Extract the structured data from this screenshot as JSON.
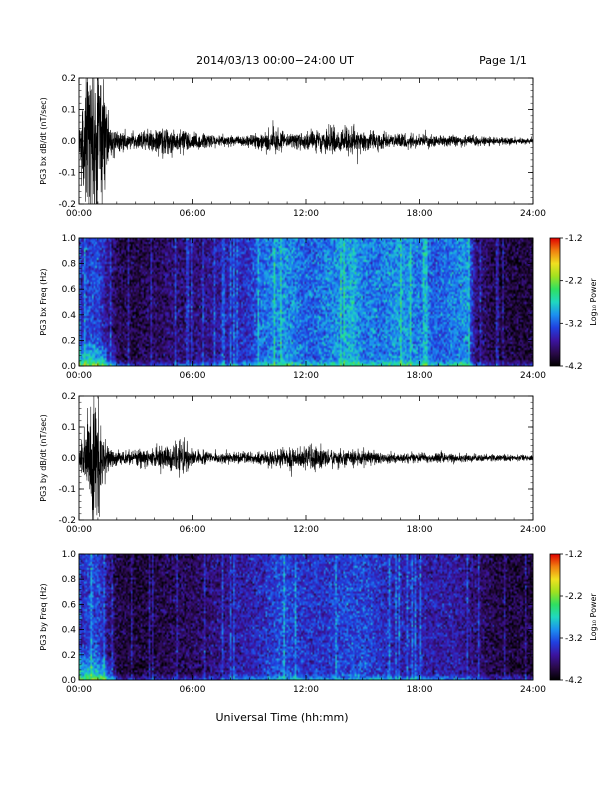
{
  "header": {
    "title": "2014/03/13  00:00−24:00 UT",
    "page": "Page 1/1"
  },
  "footer": {
    "xlabel": "Universal Time (hh:mm)"
  },
  "colorbar_label": "Log₁₀ Power",
  "colormap": [
    "#000000",
    "#2a0a4a",
    "#3c14a0",
    "#2040e0",
    "#1c90f0",
    "#20d8c0",
    "#30e060",
    "#a0e020",
    "#f0e020",
    "#f08010",
    "#e00000"
  ],
  "chart_data": [
    {
      "type": "line",
      "ylabel": "PG3 bx dB/dt (nT/sec)",
      "xlim": [
        0,
        24
      ],
      "ylim": [
        -0.2,
        0.2
      ],
      "xticks": [
        "00:00",
        "06:00",
        "12:00",
        "18:00",
        "24:00"
      ],
      "yticks": [
        "-0.2",
        "-0.1",
        "0.0",
        "0.1",
        "0.2"
      ],
      "ytick_values": [
        -0.2,
        -0.1,
        0.0,
        0.1,
        0.2
      ],
      "envelope": {
        "x": [
          0,
          0.3,
          0.5,
          0.7,
          0.9,
          1.1,
          1.3,
          1.6,
          2,
          3,
          4,
          4.5,
          5,
          5.3,
          6,
          7,
          8,
          9,
          10,
          10.5,
          11,
          12,
          12.5,
          13,
          13.5,
          14,
          14.5,
          15,
          16,
          17,
          18,
          19,
          20,
          21,
          22,
          23,
          24
        ],
        "amplitude": [
          0.02,
          0.15,
          0.2,
          0.2,
          0.2,
          0.2,
          0.15,
          0.05,
          0.025,
          0.02,
          0.03,
          0.035,
          0.03,
          0.03,
          0.02,
          0.015,
          0.013,
          0.015,
          0.025,
          0.035,
          0.02,
          0.02,
          0.025,
          0.03,
          0.035,
          0.03,
          0.035,
          0.025,
          0.02,
          0.02,
          0.015,
          0.015,
          0.015,
          0.012,
          0.01,
          0.008,
          0.008
        ]
      }
    },
    {
      "type": "heatmap",
      "ylabel": "PG3 bx Freq (Hz)",
      "xlim": [
        0,
        24
      ],
      "ylim": [
        0,
        1.0
      ],
      "xticks": [
        "00:00",
        "06:00",
        "12:00",
        "18:00",
        "24:00"
      ],
      "yticks": [
        "0.0",
        "0.2",
        "0.4",
        "0.6",
        "0.8",
        "1.0"
      ],
      "ytick_values": [
        0.0,
        0.2,
        0.4,
        0.6,
        0.8,
        1.0
      ],
      "colorbar": {
        "label": "Log₁₀ Power",
        "ticks": [
          "-1.2",
          "-2.2",
          "-3.2",
          "-4.2"
        ],
        "range": [
          -4.2,
          -1.2
        ]
      },
      "activity": {
        "x": [
          0,
          0.5,
          1,
          1.5,
          2,
          3,
          4,
          5,
          6,
          7,
          8,
          9,
          9.5,
          10,
          11,
          12,
          12.5,
          13,
          14,
          14.5,
          15,
          16,
          17,
          18,
          19,
          20,
          20.5,
          21,
          22,
          23,
          24
        ],
        "level": [
          0.3,
          0.4,
          0.4,
          0.25,
          0.15,
          0.12,
          0.15,
          0.2,
          0.2,
          0.25,
          0.3,
          0.35,
          0.45,
          0.5,
          0.55,
          0.45,
          0.45,
          0.5,
          0.55,
          0.6,
          0.5,
          0.5,
          0.55,
          0.5,
          0.45,
          0.5,
          0.55,
          0.2,
          0.12,
          0.1,
          0.1
        ]
      }
    },
    {
      "type": "line",
      "ylabel": "PG3 by dB/dt (nT/sec)",
      "xlim": [
        0,
        24
      ],
      "ylim": [
        -0.2,
        0.2
      ],
      "xticks": [
        "00:00",
        "06:00",
        "12:00",
        "18:00",
        "24:00"
      ],
      "yticks": [
        "-0.2",
        "-0.1",
        "0.0",
        "0.1",
        "0.2"
      ],
      "ytick_values": [
        -0.2,
        -0.1,
        0.0,
        0.1,
        0.2
      ],
      "envelope": {
        "x": [
          0,
          0.3,
          0.5,
          0.7,
          0.9,
          1.1,
          1.3,
          1.6,
          2,
          3,
          4,
          4.5,
          5,
          5.3,
          6,
          7,
          8,
          9,
          10,
          11,
          12,
          12.5,
          13,
          14,
          15,
          16,
          17,
          18,
          19,
          20,
          21,
          22,
          23,
          24
        ],
        "amplitude": [
          0.02,
          0.08,
          0.15,
          0.2,
          0.18,
          0.12,
          0.06,
          0.03,
          0.02,
          0.02,
          0.025,
          0.035,
          0.03,
          0.05,
          0.02,
          0.015,
          0.015,
          0.015,
          0.02,
          0.025,
          0.025,
          0.035,
          0.025,
          0.02,
          0.02,
          0.015,
          0.012,
          0.012,
          0.012,
          0.012,
          0.01,
          0.008,
          0.008,
          0.008
        ]
      }
    },
    {
      "type": "heatmap",
      "ylabel": "PG3 by Freq (Hz)",
      "xlim": [
        0,
        24
      ],
      "ylim": [
        0,
        1.0
      ],
      "xticks": [
        "00:00",
        "06:00",
        "12:00",
        "18:00",
        "24:00"
      ],
      "yticks": [
        "0.0",
        "0.2",
        "0.4",
        "0.6",
        "0.8",
        "1.0"
      ],
      "ytick_values": [
        0.0,
        0.2,
        0.4,
        0.6,
        0.8,
        1.0
      ],
      "colorbar": {
        "label": "Log₁₀ Power",
        "ticks": [
          "-1.2",
          "-2.2",
          "-3.2",
          "-4.2"
        ],
        "range": [
          -4.2,
          -1.2
        ]
      },
      "activity": {
        "x": [
          0,
          0.5,
          1,
          1.5,
          2,
          3,
          4,
          5,
          6,
          7,
          8,
          9,
          10,
          10.5,
          11,
          12,
          13,
          14,
          15,
          16,
          17,
          18,
          19,
          20,
          21,
          22,
          23,
          24
        ],
        "level": [
          0.3,
          0.4,
          0.4,
          0.25,
          0.12,
          0.1,
          0.12,
          0.15,
          0.15,
          0.2,
          0.25,
          0.3,
          0.35,
          0.4,
          0.4,
          0.35,
          0.35,
          0.4,
          0.4,
          0.35,
          0.3,
          0.3,
          0.28,
          0.28,
          0.2,
          0.12,
          0.1,
          0.1
        ]
      }
    }
  ]
}
